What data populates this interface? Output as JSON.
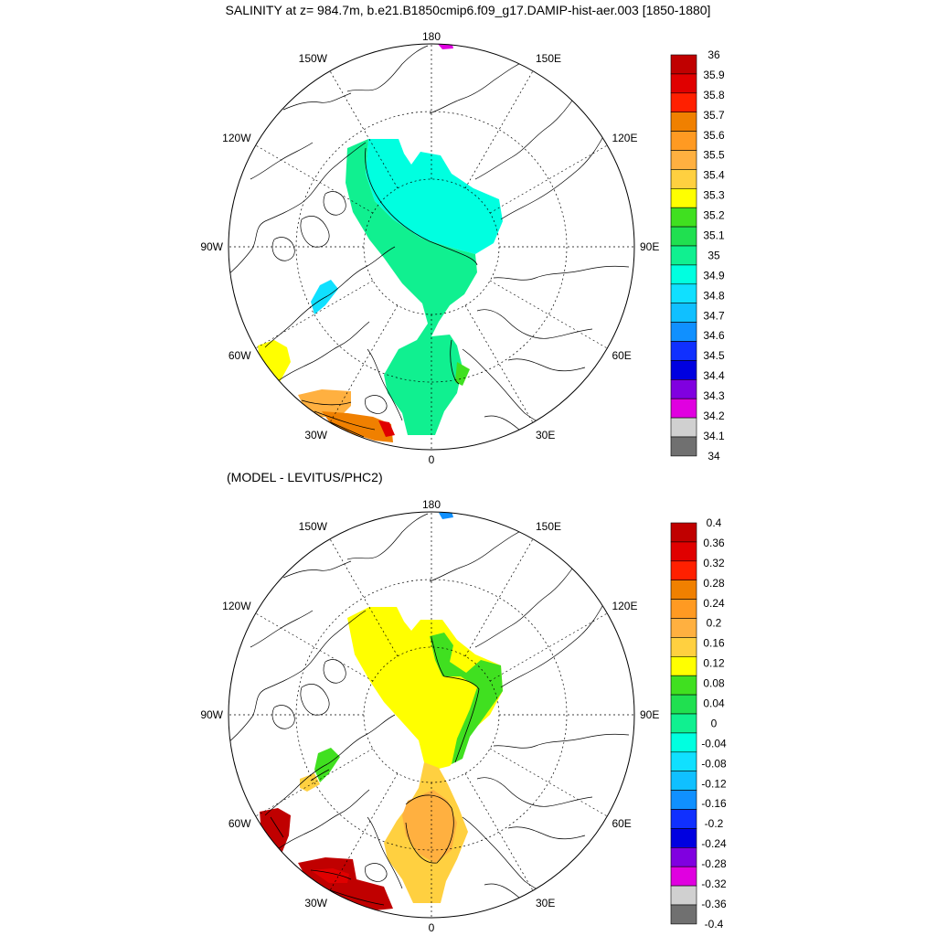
{
  "title": "SALINITY at z= 984.7m, b.e21.B1850cmip6.f09_g17.DAMIP-hist-aer.003 [1850-1880]",
  "subtitle": "(MODEL - LEVITUS/PHC2)",
  "longitude_labels": [
    "180",
    "150E",
    "120E",
    "90E",
    "60E",
    "30E",
    "0",
    "30W",
    "60W",
    "90W",
    "120W",
    "150W"
  ],
  "colorbars": {
    "salinity": {
      "labels": [
        "36",
        "35.9",
        "35.8",
        "35.7",
        "35.6",
        "35.5",
        "35.4",
        "35.3",
        "35.2",
        "35.1",
        "35",
        "34.9",
        "34.8",
        "34.7",
        "34.6",
        "34.5",
        "34.4",
        "34.3",
        "34.2",
        "34.1",
        "34"
      ],
      "colors": [
        "#c00000",
        "#e00000",
        "#ff2000",
        "#f08000",
        "#ff9a22",
        "#ffb040",
        "#ffd040",
        "#ffff00",
        "#40e020",
        "#20e050",
        "#10f090",
        "#00ffe0",
        "#10e0ff",
        "#10c0ff",
        "#1090ff",
        "#1030ff",
        "#0000e0",
        "#8000e0",
        "#e000e0",
        "#d0d0d0",
        "#707070"
      ]
    },
    "difference": {
      "labels": [
        "0.4",
        "0.36",
        "0.32",
        "0.28",
        "0.24",
        "0.2",
        "0.16",
        "0.12",
        "0.08",
        "0.04",
        "0",
        "-0.04",
        "-0.08",
        "-0.12",
        "-0.16",
        "-0.2",
        "-0.24",
        "-0.28",
        "-0.32",
        "-0.36",
        "-0.4"
      ],
      "colors": [
        "#c00000",
        "#e00000",
        "#ff2000",
        "#f08000",
        "#ff9a22",
        "#ffb040",
        "#ffd040",
        "#ffff00",
        "#40e020",
        "#20e050",
        "#10f090",
        "#00ffe0",
        "#10e0ff",
        "#10c0ff",
        "#1090ff",
        "#1030ff",
        "#0000e0",
        "#8000e0",
        "#e000e0",
        "#d0d0d0",
        "#707070"
      ]
    }
  },
  "field_colors": {
    "salinity": {
      "pacific_side": "#00ffe0",
      "atlantic_side": "#10f090",
      "atlantic_edge": "#40e020",
      "baffin": "#10e0ff",
      "labrador": "#ffff00",
      "north_atlantic_a": "#ffb040",
      "north_atlantic_b": "#f08000",
      "north_atlantic_c": "#e00000",
      "north_pacific": "#e000e0"
    },
    "difference": {
      "arctic": "#ffff00",
      "eurasian_green": "#40e020",
      "atlantic": "#ffd040",
      "atlantic_core": "#ffb040",
      "baffin_green": "#40e020",
      "baffin_yellow": "#ffd040",
      "labrador": "#c00000",
      "north_atlantic": "#c00000",
      "north_atlantic_inner": "#e00000",
      "north_pacific": "#1090ff"
    }
  }
}
